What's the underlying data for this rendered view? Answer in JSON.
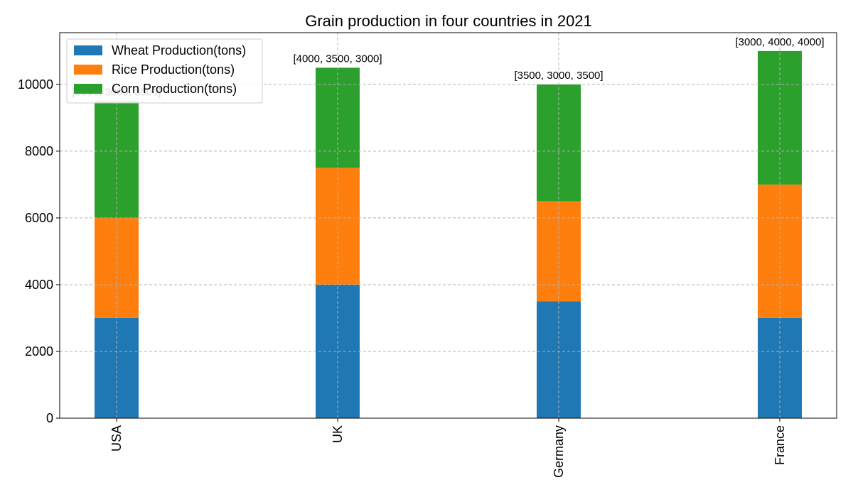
{
  "chart_data": {
    "type": "bar",
    "stacked": true,
    "title": "Grain production in four countries in 2021",
    "xlabel": "",
    "ylabel": "",
    "categories": [
      "USA",
      "UK",
      "Germany",
      "France"
    ],
    "series": [
      {
        "name": "Wheat Production(tons)",
        "values": [
          3000,
          4000,
          3500,
          3000
        ],
        "color": "#1f77b4"
      },
      {
        "name": "Rice Production(tons)",
        "values": [
          3000,
          3500,
          3000,
          4000
        ],
        "color": "#ff7f0e"
      },
      {
        "name": "Corn Production(tons)",
        "values": [
          3500,
          3000,
          3500,
          4000
        ],
        "color": "#2ca02c"
      }
    ],
    "bar_labels": [
      "[3000, 3000, 3500]",
      "[4000, 3500, 3000]",
      "[3500, 3000, 3500]",
      "[3000, 4000, 4000]"
    ],
    "ylim": [
      0,
      11550
    ],
    "yticks": [
      0,
      2000,
      4000,
      6000,
      8000,
      10000
    ],
    "grid": true,
    "legend": "top-left",
    "x_tick_rotation": "vertical"
  }
}
